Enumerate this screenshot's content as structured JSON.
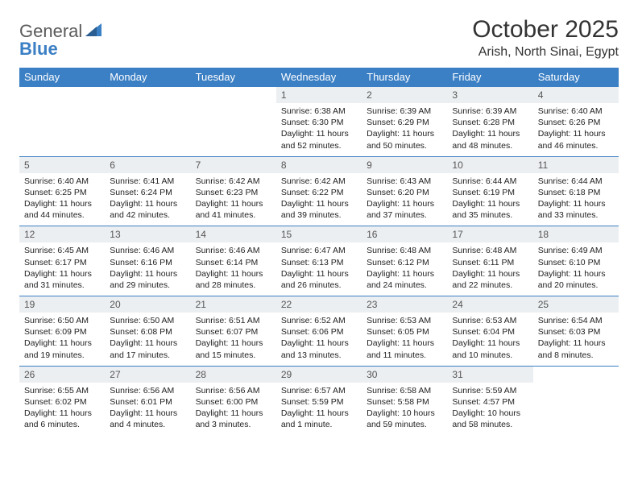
{
  "brand": {
    "part1": "General",
    "part2": "Blue"
  },
  "title": "October 2025",
  "location": "Arish, North Sinai, Egypt",
  "colors": {
    "header_bg": "#3b7fc4",
    "header_text": "#ffffff",
    "daynum_bg": "#eceff1",
    "border": "#3b7fc4",
    "body_text": "#222222",
    "title_text": "#333333",
    "logo_gray": "#5a5a5a",
    "logo_blue": "#3b7fc4"
  },
  "weekdays": [
    "Sunday",
    "Monday",
    "Tuesday",
    "Wednesday",
    "Thursday",
    "Friday",
    "Saturday"
  ],
  "weeks": [
    [
      null,
      null,
      null,
      {
        "n": "1",
        "sr": "6:38 AM",
        "ss": "6:30 PM",
        "dl": "11 hours and 52 minutes."
      },
      {
        "n": "2",
        "sr": "6:39 AM",
        "ss": "6:29 PM",
        "dl": "11 hours and 50 minutes."
      },
      {
        "n": "3",
        "sr": "6:39 AM",
        "ss": "6:28 PM",
        "dl": "11 hours and 48 minutes."
      },
      {
        "n": "4",
        "sr": "6:40 AM",
        "ss": "6:26 PM",
        "dl": "11 hours and 46 minutes."
      }
    ],
    [
      {
        "n": "5",
        "sr": "6:40 AM",
        "ss": "6:25 PM",
        "dl": "11 hours and 44 minutes."
      },
      {
        "n": "6",
        "sr": "6:41 AM",
        "ss": "6:24 PM",
        "dl": "11 hours and 42 minutes."
      },
      {
        "n": "7",
        "sr": "6:42 AM",
        "ss": "6:23 PM",
        "dl": "11 hours and 41 minutes."
      },
      {
        "n": "8",
        "sr": "6:42 AM",
        "ss": "6:22 PM",
        "dl": "11 hours and 39 minutes."
      },
      {
        "n": "9",
        "sr": "6:43 AM",
        "ss": "6:20 PM",
        "dl": "11 hours and 37 minutes."
      },
      {
        "n": "10",
        "sr": "6:44 AM",
        "ss": "6:19 PM",
        "dl": "11 hours and 35 minutes."
      },
      {
        "n": "11",
        "sr": "6:44 AM",
        "ss": "6:18 PM",
        "dl": "11 hours and 33 minutes."
      }
    ],
    [
      {
        "n": "12",
        "sr": "6:45 AM",
        "ss": "6:17 PM",
        "dl": "11 hours and 31 minutes."
      },
      {
        "n": "13",
        "sr": "6:46 AM",
        "ss": "6:16 PM",
        "dl": "11 hours and 29 minutes."
      },
      {
        "n": "14",
        "sr": "6:46 AM",
        "ss": "6:14 PM",
        "dl": "11 hours and 28 minutes."
      },
      {
        "n": "15",
        "sr": "6:47 AM",
        "ss": "6:13 PM",
        "dl": "11 hours and 26 minutes."
      },
      {
        "n": "16",
        "sr": "6:48 AM",
        "ss": "6:12 PM",
        "dl": "11 hours and 24 minutes."
      },
      {
        "n": "17",
        "sr": "6:48 AM",
        "ss": "6:11 PM",
        "dl": "11 hours and 22 minutes."
      },
      {
        "n": "18",
        "sr": "6:49 AM",
        "ss": "6:10 PM",
        "dl": "11 hours and 20 minutes."
      }
    ],
    [
      {
        "n": "19",
        "sr": "6:50 AM",
        "ss": "6:09 PM",
        "dl": "11 hours and 19 minutes."
      },
      {
        "n": "20",
        "sr": "6:50 AM",
        "ss": "6:08 PM",
        "dl": "11 hours and 17 minutes."
      },
      {
        "n": "21",
        "sr": "6:51 AM",
        "ss": "6:07 PM",
        "dl": "11 hours and 15 minutes."
      },
      {
        "n": "22",
        "sr": "6:52 AM",
        "ss": "6:06 PM",
        "dl": "11 hours and 13 minutes."
      },
      {
        "n": "23",
        "sr": "6:53 AM",
        "ss": "6:05 PM",
        "dl": "11 hours and 11 minutes."
      },
      {
        "n": "24",
        "sr": "6:53 AM",
        "ss": "6:04 PM",
        "dl": "11 hours and 10 minutes."
      },
      {
        "n": "25",
        "sr": "6:54 AM",
        "ss": "6:03 PM",
        "dl": "11 hours and 8 minutes."
      }
    ],
    [
      {
        "n": "26",
        "sr": "6:55 AM",
        "ss": "6:02 PM",
        "dl": "11 hours and 6 minutes."
      },
      {
        "n": "27",
        "sr": "6:56 AM",
        "ss": "6:01 PM",
        "dl": "11 hours and 4 minutes."
      },
      {
        "n": "28",
        "sr": "6:56 AM",
        "ss": "6:00 PM",
        "dl": "11 hours and 3 minutes."
      },
      {
        "n": "29",
        "sr": "6:57 AM",
        "ss": "5:59 PM",
        "dl": "11 hours and 1 minute."
      },
      {
        "n": "30",
        "sr": "6:58 AM",
        "ss": "5:58 PM",
        "dl": "10 hours and 59 minutes."
      },
      {
        "n": "31",
        "sr": "5:59 AM",
        "ss": "4:57 PM",
        "dl": "10 hours and 58 minutes."
      },
      null
    ]
  ],
  "labels": {
    "sunrise": "Sunrise:",
    "sunset": "Sunset:",
    "daylight": "Daylight:"
  }
}
